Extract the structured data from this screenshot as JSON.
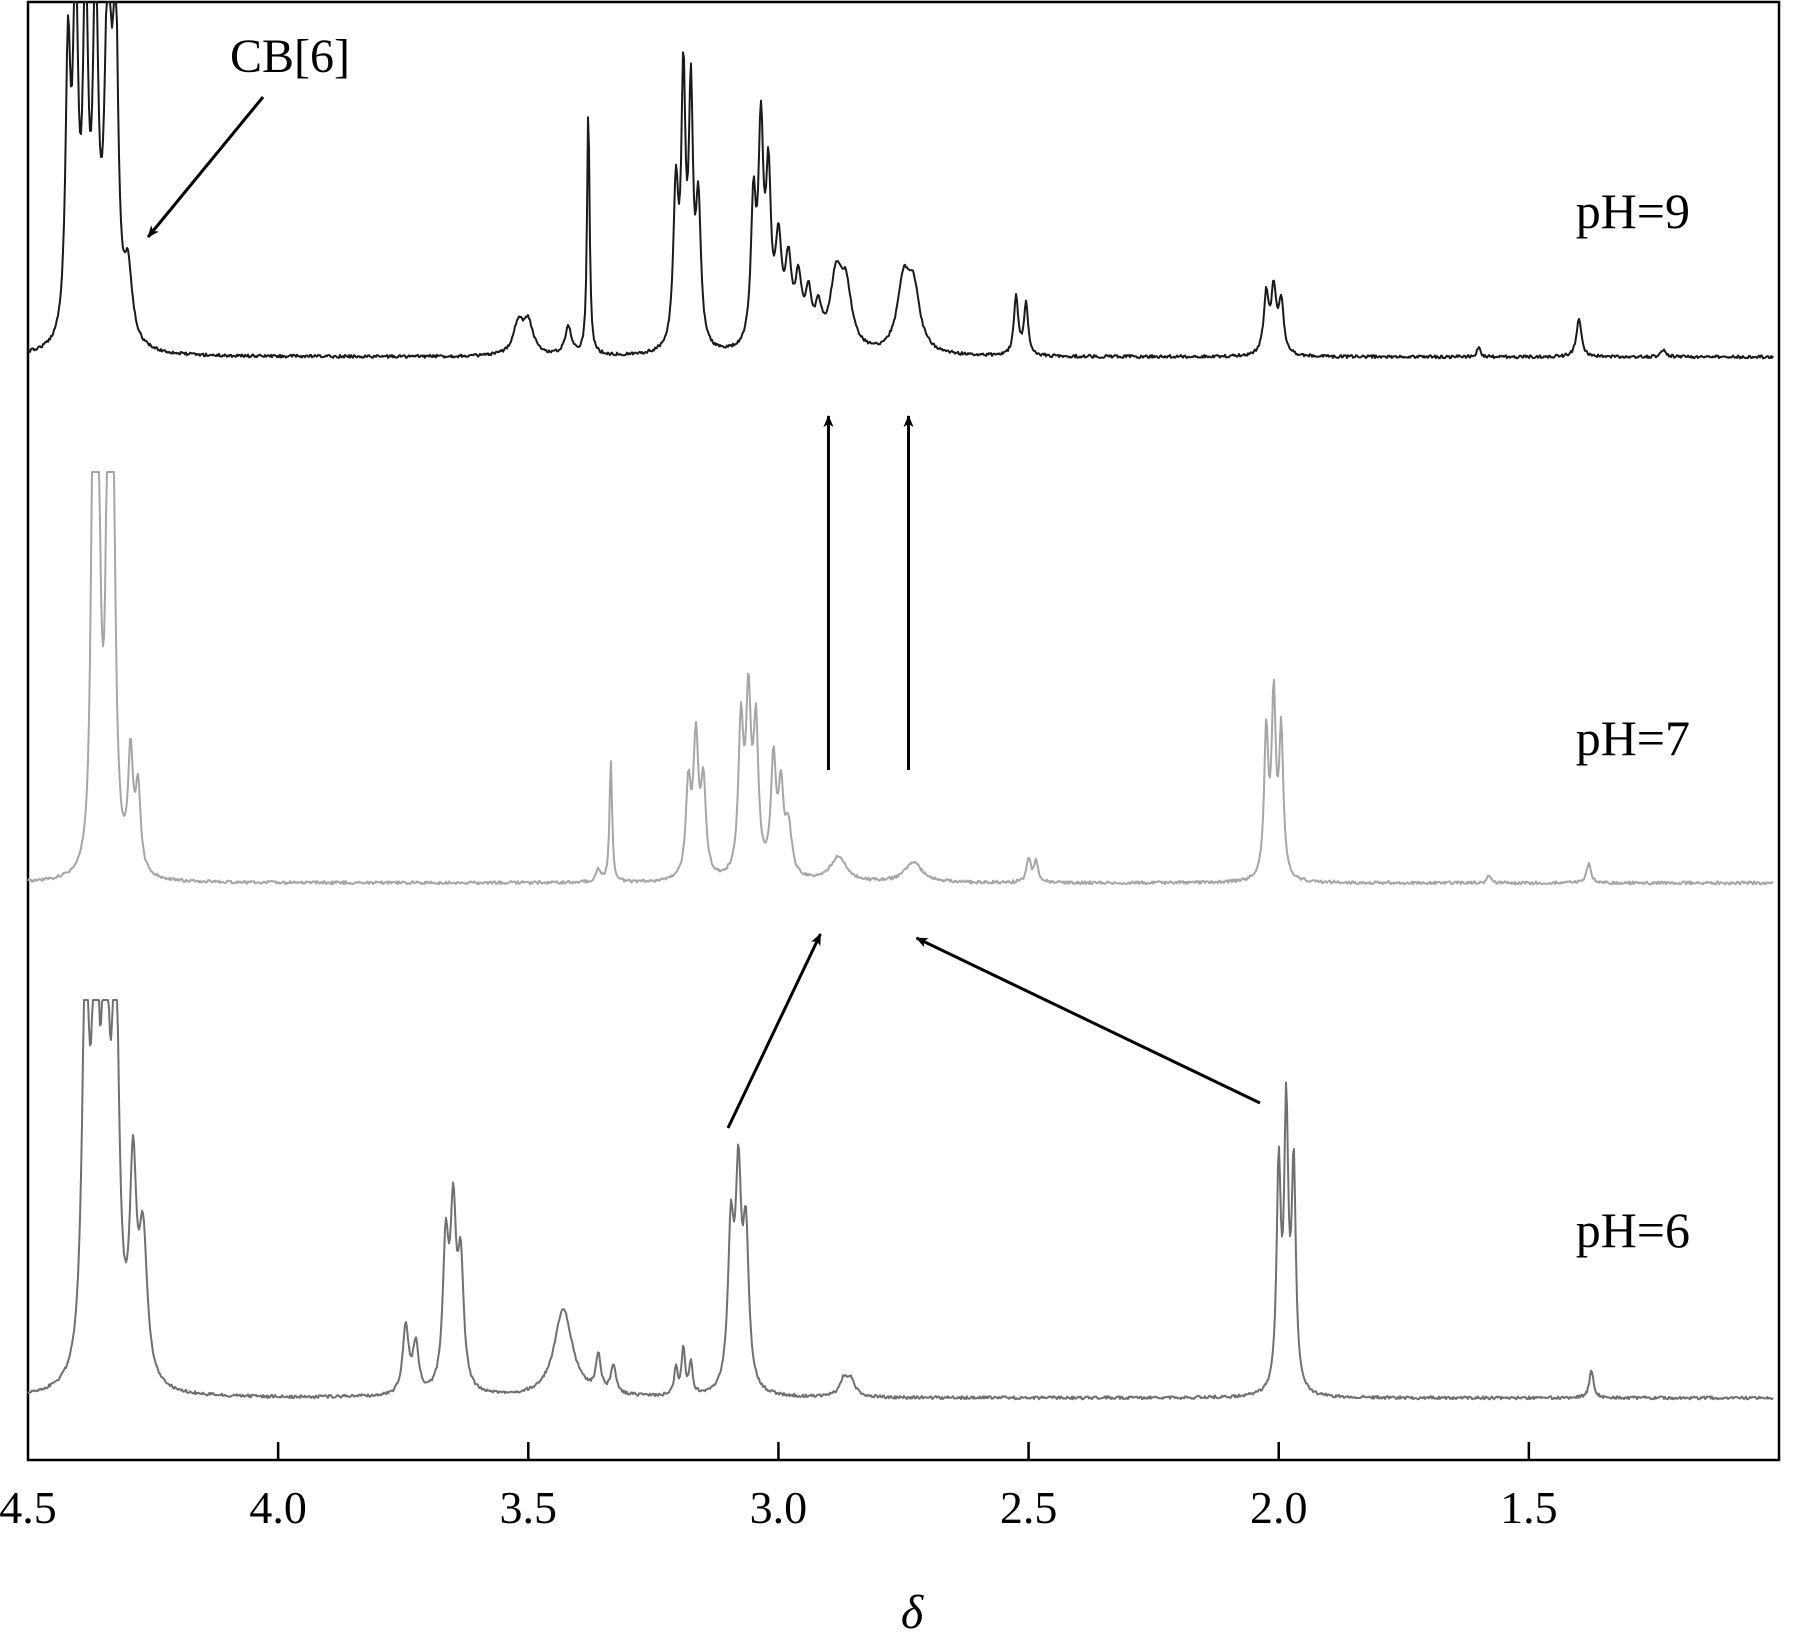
{
  "chart_data": {
    "type": "line",
    "title": "",
    "xlabel": "δ",
    "ylabel": "",
    "xlim": [
      4.5,
      1.0
    ],
    "x_reversed": true,
    "xticks": [
      "4.5",
      "4.0",
      "3.5",
      "3.0",
      "2.5",
      "2.0",
      "1.5"
    ],
    "yticks": [],
    "grid": false,
    "series": [
      {
        "name": "pH=9",
        "color": "#1a1a1a",
        "peaks": [
          {
            "x": 4.42,
            "h": 0.8,
            "w": 0.006
          },
          {
            "x": 4.405,
            "h": 1.0,
            "w": 0.006
          },
          {
            "x": 4.385,
            "h": 1.0,
            "w": 0.006
          },
          {
            "x": 4.365,
            "h": 1.0,
            "w": 0.006
          },
          {
            "x": 4.34,
            "h": 1.0,
            "w": 0.008
          },
          {
            "x": 4.325,
            "h": 0.9,
            "w": 0.006
          },
          {
            "x": 4.3,
            "h": 0.2,
            "w": 0.01
          },
          {
            "x": 3.52,
            "h": 0.09,
            "w": 0.012
          },
          {
            "x": 3.5,
            "h": 0.09,
            "w": 0.012
          },
          {
            "x": 3.42,
            "h": 0.08,
            "w": 0.008
          },
          {
            "x": 3.38,
            "h": 0.72,
            "w": 0.003
          },
          {
            "x": 3.205,
            "h": 0.45,
            "w": 0.006
          },
          {
            "x": 3.19,
            "h": 0.75,
            "w": 0.005
          },
          {
            "x": 3.175,
            "h": 0.7,
            "w": 0.005
          },
          {
            "x": 3.16,
            "h": 0.4,
            "w": 0.006
          },
          {
            "x": 3.05,
            "h": 0.4,
            "w": 0.006
          },
          {
            "x": 3.035,
            "h": 0.6,
            "w": 0.006
          },
          {
            "x": 3.02,
            "h": 0.45,
            "w": 0.006
          },
          {
            "x": 3.0,
            "h": 0.28,
            "w": 0.008
          },
          {
            "x": 2.98,
            "h": 0.22,
            "w": 0.008
          },
          {
            "x": 2.96,
            "h": 0.18,
            "w": 0.008
          },
          {
            "x": 2.94,
            "h": 0.14,
            "w": 0.008
          },
          {
            "x": 2.92,
            "h": 0.1,
            "w": 0.008
          },
          {
            "x": 2.885,
            "h": 0.2,
            "w": 0.014
          },
          {
            "x": 2.865,
            "h": 0.17,
            "w": 0.014
          },
          {
            "x": 2.75,
            "h": 0.19,
            "w": 0.015
          },
          {
            "x": 2.73,
            "h": 0.17,
            "w": 0.015
          },
          {
            "x": 2.525,
            "h": 0.17,
            "w": 0.005
          },
          {
            "x": 2.505,
            "h": 0.15,
            "w": 0.005
          },
          {
            "x": 2.025,
            "h": 0.17,
            "w": 0.006
          },
          {
            "x": 2.01,
            "h": 0.18,
            "w": 0.006
          },
          {
            "x": 1.995,
            "h": 0.15,
            "w": 0.006
          },
          {
            "x": 1.6,
            "h": 0.03,
            "w": 0.004
          },
          {
            "x": 1.4,
            "h": 0.11,
            "w": 0.006
          },
          {
            "x": 1.23,
            "h": 0.02,
            "w": 0.006
          }
        ]
      },
      {
        "name": "pH=7",
        "color": "#a6a6a6",
        "peaks": [
          {
            "x": 4.37,
            "h": 1.0,
            "w": 0.005
          },
          {
            "x": 4.36,
            "h": 0.9,
            "w": 0.006
          },
          {
            "x": 4.34,
            "h": 1.0,
            "w": 0.005
          },
          {
            "x": 4.33,
            "h": 0.9,
            "w": 0.006
          },
          {
            "x": 4.295,
            "h": 0.28,
            "w": 0.006
          },
          {
            "x": 4.28,
            "h": 0.2,
            "w": 0.006
          },
          {
            "x": 3.36,
            "h": 0.03,
            "w": 0.006
          },
          {
            "x": 3.335,
            "h": 0.3,
            "w": 0.003
          },
          {
            "x": 3.18,
            "h": 0.22,
            "w": 0.006
          },
          {
            "x": 3.165,
            "h": 0.33,
            "w": 0.006
          },
          {
            "x": 3.15,
            "h": 0.22,
            "w": 0.006
          },
          {
            "x": 3.075,
            "h": 0.36,
            "w": 0.006
          },
          {
            "x": 3.06,
            "h": 0.41,
            "w": 0.006
          },
          {
            "x": 3.045,
            "h": 0.35,
            "w": 0.006
          },
          {
            "x": 3.01,
            "h": 0.28,
            "w": 0.006
          },
          {
            "x": 2.995,
            "h": 0.2,
            "w": 0.006
          },
          {
            "x": 2.98,
            "h": 0.12,
            "w": 0.008
          },
          {
            "x": 2.88,
            "h": 0.06,
            "w": 0.02
          },
          {
            "x": 2.73,
            "h": 0.05,
            "w": 0.02
          },
          {
            "x": 2.5,
            "h": 0.06,
            "w": 0.005
          },
          {
            "x": 2.485,
            "h": 0.05,
            "w": 0.005
          },
          {
            "x": 2.025,
            "h": 0.35,
            "w": 0.005
          },
          {
            "x": 2.01,
            "h": 0.43,
            "w": 0.005
          },
          {
            "x": 1.995,
            "h": 0.35,
            "w": 0.005
          },
          {
            "x": 1.58,
            "h": 0.02,
            "w": 0.004
          },
          {
            "x": 1.38,
            "h": 0.05,
            "w": 0.005
          }
        ]
      },
      {
        "name": "pH=6",
        "color": "#707070",
        "peaks": [
          {
            "x": 4.385,
            "h": 1.0,
            "w": 0.008
          },
          {
            "x": 4.365,
            "h": 1.0,
            "w": 0.008
          },
          {
            "x": 4.345,
            "h": 1.0,
            "w": 0.008
          },
          {
            "x": 4.325,
            "h": 1.0,
            "w": 0.008
          },
          {
            "x": 4.29,
            "h": 0.5,
            "w": 0.008
          },
          {
            "x": 4.27,
            "h": 0.35,
            "w": 0.01
          },
          {
            "x": 3.745,
            "h": 0.17,
            "w": 0.007
          },
          {
            "x": 3.725,
            "h": 0.12,
            "w": 0.007
          },
          {
            "x": 3.665,
            "h": 0.35,
            "w": 0.007
          },
          {
            "x": 3.65,
            "h": 0.42,
            "w": 0.007
          },
          {
            "x": 3.635,
            "h": 0.3,
            "w": 0.007
          },
          {
            "x": 3.43,
            "h": 0.22,
            "w": 0.022
          },
          {
            "x": 3.36,
            "h": 0.09,
            "w": 0.006
          },
          {
            "x": 3.33,
            "h": 0.07,
            "w": 0.006
          },
          {
            "x": 3.205,
            "h": 0.07,
            "w": 0.004
          },
          {
            "x": 3.19,
            "h": 0.12,
            "w": 0.004
          },
          {
            "x": 3.175,
            "h": 0.08,
            "w": 0.004
          },
          {
            "x": 3.095,
            "h": 0.38,
            "w": 0.007
          },
          {
            "x": 3.08,
            "h": 0.5,
            "w": 0.007
          },
          {
            "x": 3.065,
            "h": 0.37,
            "w": 0.007
          },
          {
            "x": 2.87,
            "h": 0.04,
            "w": 0.01
          },
          {
            "x": 2.855,
            "h": 0.04,
            "w": 0.01
          },
          {
            "x": 2.0,
            "h": 0.55,
            "w": 0.005
          },
          {
            "x": 1.985,
            "h": 0.68,
            "w": 0.005
          },
          {
            "x": 1.97,
            "h": 0.55,
            "w": 0.005
          },
          {
            "x": 1.375,
            "h": 0.07,
            "w": 0.005
          }
        ]
      }
    ],
    "annotations": [
      {
        "text": "CB[6]",
        "points_to_x": 4.26,
        "series": "pH=9",
        "type": "arrow"
      },
      {
        "type": "arrow",
        "from": {
          "x": 2.9,
          "series": "pH=7"
        },
        "to": {
          "x": 2.9,
          "series": "pH=9"
        }
      },
      {
        "type": "arrow",
        "from": {
          "x": 2.74,
          "series": "pH=7"
        },
        "to": {
          "x": 2.74,
          "series": "pH=9"
        }
      },
      {
        "type": "arrow",
        "from": {
          "x": 3.1,
          "series": "pH=6"
        },
        "to": {
          "x": 2.9,
          "series": "pH=7"
        }
      },
      {
        "type": "arrow",
        "from": {
          "x": 2.0,
          "series": "pH=6"
        },
        "to": {
          "x": 2.74,
          "series": "pH=7"
        }
      }
    ]
  }
}
